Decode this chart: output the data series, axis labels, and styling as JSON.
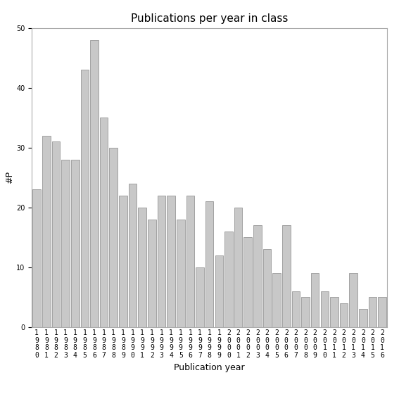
{
  "title": "Publications per year in class",
  "xlabel": "Publication year",
  "ylabel": "#P",
  "years": [
    1980,
    1981,
    1982,
    1983,
    1984,
    1985,
    1986,
    1987,
    1988,
    1989,
    1990,
    1991,
    1992,
    1993,
    1994,
    1995,
    1996,
    1997,
    1998,
    1999,
    2000,
    2001,
    2002,
    2003,
    2004,
    2005,
    2006,
    2007,
    2008,
    2009,
    2010,
    2011,
    2012,
    2013,
    2014,
    2015,
    2016
  ],
  "values": [
    23,
    32,
    31,
    28,
    28,
    43,
    48,
    35,
    30,
    22,
    24,
    20,
    18,
    22,
    22,
    18,
    22,
    10,
    21,
    12,
    16,
    20,
    15,
    17,
    13,
    9,
    17,
    6,
    5,
    9,
    6,
    5,
    4,
    9,
    3,
    5,
    5
  ],
  "bar_color": "#c8c8c8",
  "bar_edgecolor": "#888888",
  "ylim": [
    0,
    50
  ],
  "yticks": [
    0,
    10,
    20,
    30,
    40,
    50
  ],
  "title_fontsize": 11,
  "axis_label_fontsize": 9,
  "tick_fontsize": 7
}
